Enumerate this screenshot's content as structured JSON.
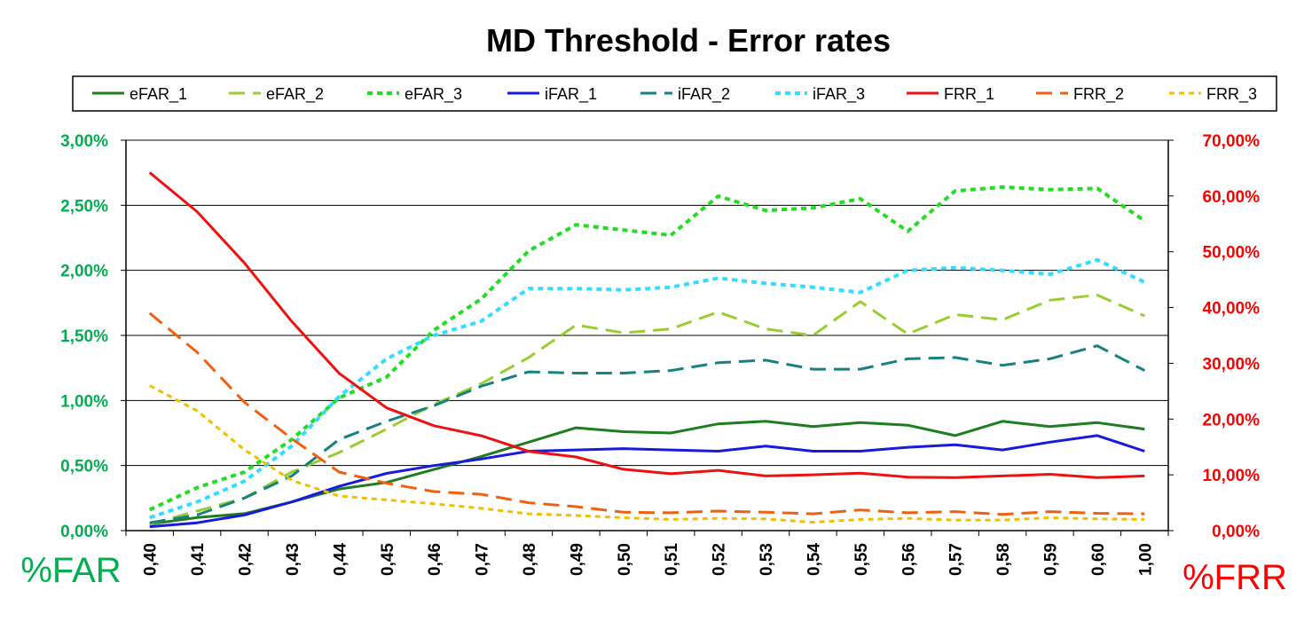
{
  "chart_data": {
    "type": "line",
    "title": "MD Threshold - Error rates",
    "xlabel": "",
    "ylabel_left": "%FAR",
    "ylabel_right": "%FRR",
    "categories": [
      "0,40",
      "0,41",
      "0,42",
      "0,43",
      "0,44",
      "0,45",
      "0,46",
      "0,47",
      "0,48",
      "0,49",
      "0,50",
      "0,51",
      "0,52",
      "0,53",
      "0,54",
      "0,55",
      "0,56",
      "0,57",
      "0,58",
      "0,59",
      "0,60",
      "1,00"
    ],
    "ylim_left": [
      0,
      3
    ],
    "ylim_right": [
      0,
      70
    ],
    "yticks_left": [
      "0,00%",
      "0,50%",
      "1,00%",
      "1,50%",
      "2,00%",
      "2,50%",
      "3,00%"
    ],
    "yticks_right": [
      "0,00%",
      "10,00%",
      "20,00%",
      "30,00%",
      "40,00%",
      "50,00%",
      "60,00%",
      "70,00%"
    ],
    "grid": true,
    "legend_position": "top",
    "series": [
      {
        "name": "eFAR_1",
        "axis": "left",
        "color": "#1e7d1e",
        "dash": "solid",
        "width": 3,
        "values": [
          0.05,
          0.1,
          0.13,
          0.22,
          0.32,
          0.37,
          0.47,
          0.57,
          0.68,
          0.79,
          0.76,
          0.75,
          0.82,
          0.84,
          0.8,
          0.83,
          0.81,
          0.73,
          0.84,
          0.8,
          0.83,
          0.78
        ]
      },
      {
        "name": "eFAR_2",
        "axis": "left",
        "color": "#9acd32",
        "dash": "long",
        "width": 3,
        "values": [
          0.05,
          0.15,
          0.25,
          0.45,
          0.6,
          0.78,
          0.97,
          1.13,
          1.33,
          1.58,
          1.52,
          1.55,
          1.68,
          1.55,
          1.5,
          1.76,
          1.51,
          1.66,
          1.62,
          1.77,
          1.81,
          1.65
        ]
      },
      {
        "name": "eFAR_3",
        "axis": "left",
        "color": "#22dd22",
        "dash": "short",
        "width": 4,
        "values": [
          0.16,
          0.33,
          0.45,
          0.7,
          1.02,
          1.18,
          1.54,
          1.78,
          2.15,
          2.35,
          2.31,
          2.27,
          2.57,
          2.46,
          2.48,
          2.55,
          2.3,
          2.61,
          2.64,
          2.62,
          2.63,
          2.38
        ]
      },
      {
        "name": "iFAR_1",
        "axis": "left",
        "color": "#1a1adc",
        "dash": "solid",
        "width": 3,
        "values": [
          0.03,
          0.06,
          0.12,
          0.22,
          0.34,
          0.44,
          0.5,
          0.55,
          0.61,
          0.62,
          0.63,
          0.62,
          0.61,
          0.65,
          0.61,
          0.61,
          0.64,
          0.66,
          0.62,
          0.68,
          0.73,
          0.61
        ]
      },
      {
        "name": "iFAR_2",
        "axis": "left",
        "color": "#178080",
        "dash": "long",
        "width": 3,
        "values": [
          0.06,
          0.12,
          0.25,
          0.42,
          0.7,
          0.84,
          0.96,
          1.11,
          1.22,
          1.21,
          1.21,
          1.23,
          1.29,
          1.31,
          1.24,
          1.24,
          1.32,
          1.33,
          1.27,
          1.32,
          1.42,
          1.23
        ]
      },
      {
        "name": "iFAR_3",
        "axis": "left",
        "color": "#33ddff",
        "dash": "short",
        "width": 4,
        "values": [
          0.1,
          0.22,
          0.38,
          0.65,
          1.03,
          1.32,
          1.5,
          1.61,
          1.86,
          1.86,
          1.85,
          1.87,
          1.94,
          1.9,
          1.87,
          1.83,
          2.0,
          2.02,
          2.0,
          1.97,
          2.08,
          1.91
        ]
      },
      {
        "name": "FRR_1",
        "axis": "right",
        "color": "#ee1111",
        "dash": "solid",
        "width": 3,
        "values": [
          64.2,
          57.2,
          48.0,
          37.5,
          28.2,
          22.0,
          18.8,
          17.0,
          14.2,
          13.2,
          11.0,
          10.2,
          10.8,
          9.8,
          10.0,
          10.3,
          9.6,
          9.5,
          9.8,
          10.1,
          9.5,
          9.8
        ]
      },
      {
        "name": "FRR_2",
        "axis": "right",
        "color": "#f06010",
        "dash": "long",
        "width": 3,
        "values": [
          39.0,
          32.0,
          23.0,
          16.5,
          10.5,
          8.5,
          7.0,
          6.5,
          5.0,
          4.3,
          3.3,
          3.2,
          3.5,
          3.3,
          3.0,
          3.7,
          3.2,
          3.4,
          2.9,
          3.4,
          3.1,
          3.0
        ]
      },
      {
        "name": "FRR_3",
        "axis": "right",
        "color": "#f0c000",
        "dash": "short",
        "width": 3,
        "values": [
          26.0,
          21.5,
          14.5,
          9.0,
          6.2,
          5.5,
          4.8,
          4.0,
          3.0,
          2.7,
          2.3,
          2.0,
          2.2,
          2.1,
          1.5,
          2.0,
          2.2,
          1.9,
          1.9,
          2.3,
          2.1,
          2.0
        ]
      }
    ]
  }
}
